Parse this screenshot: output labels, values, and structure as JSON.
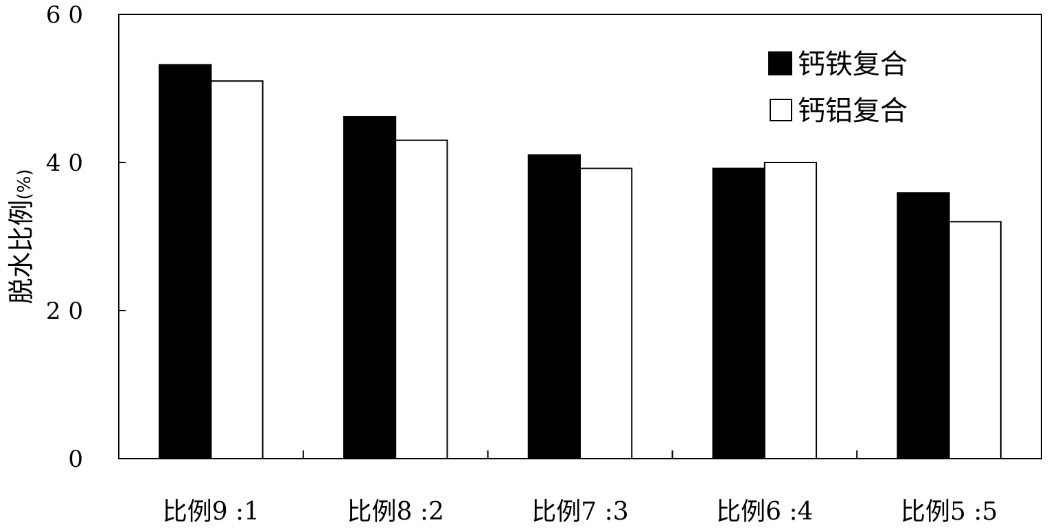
{
  "chart_data": {
    "type": "bar",
    "categories": [
      "比例9 :1",
      "比例8 :2",
      "比例7 :3",
      "比例6 :4",
      "比例5 :5"
    ],
    "series": [
      {
        "name": "钙铁复合",
        "values": [
          53.2,
          46.2,
          41.0,
          39.2,
          35.9
        ],
        "color": "#000000"
      },
      {
        "name": "钙铝复合",
        "values": [
          51.0,
          43.0,
          39.2,
          40.0,
          32.0
        ],
        "color": "#ffffff"
      }
    ],
    "title": "",
    "xlabel": "",
    "ylabel": "脱水比例",
    "ylabel_unit": "(%)",
    "ylim": [
      0,
      60
    ],
    "yticks": [
      0,
      20,
      40,
      60
    ],
    "ytick_labels": [
      "0",
      "2 0",
      "4 0",
      "6 0"
    ],
    "grid": false,
    "legend_position": "top-right"
  }
}
